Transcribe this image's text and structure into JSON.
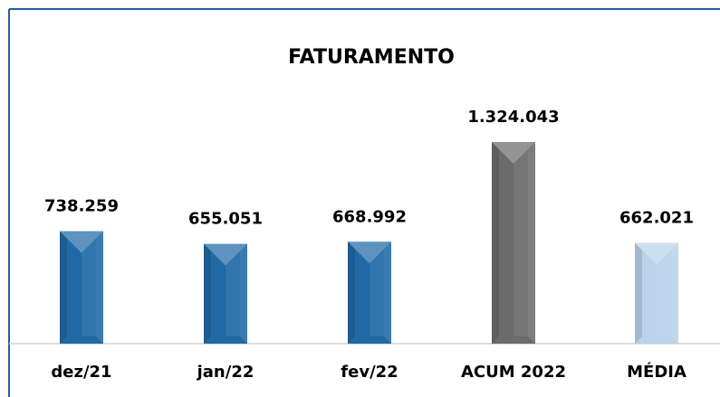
{
  "chart_data": {
    "type": "bar",
    "title": "FATURAMENTO",
    "categories": [
      "dez/21",
      "jan/22",
      "fev/22",
      "ACUM 2022",
      "MÉDIA"
    ],
    "values": [
      738259,
      655051,
      668992,
      1324043,
      662021
    ],
    "value_labels": [
      "738.259",
      "655.051",
      "668.992",
      "1.324.043",
      "662.021"
    ],
    "colors": [
      "#1f6aa5",
      "#1f6aa5",
      "#1f6aa5",
      "#6b6b6b",
      "#b9d3ea"
    ]
  }
}
